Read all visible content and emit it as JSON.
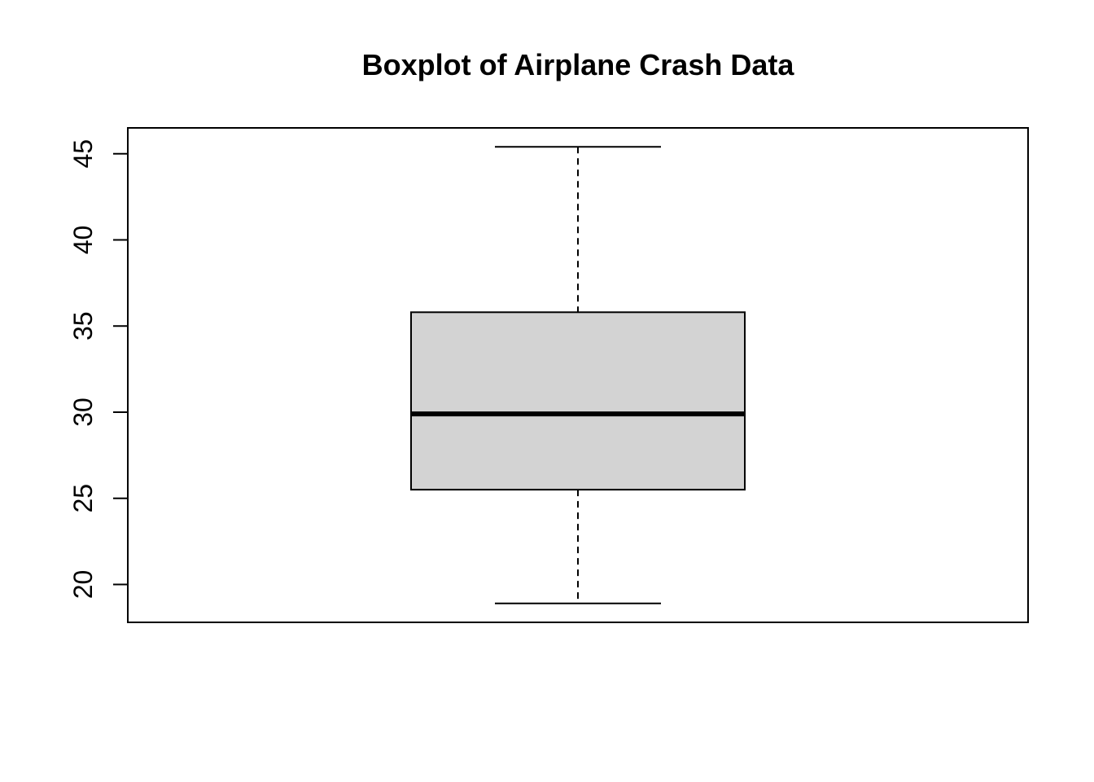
{
  "chart_data": {
    "type": "boxplot",
    "title": "Boxplot of Airplane Crash Data",
    "xlabel": "",
    "ylabel": "",
    "ylim": [
      17.8,
      46.5
    ],
    "yticks": [
      20,
      25,
      30,
      35,
      40,
      45
    ],
    "grid": false,
    "box": {
      "min": 18.9,
      "q1": 25.5,
      "median": 29.9,
      "q3": 35.8,
      "max": 45.4
    },
    "colors": {
      "box_fill": "#d3d3d3",
      "stroke": "#000000"
    }
  }
}
